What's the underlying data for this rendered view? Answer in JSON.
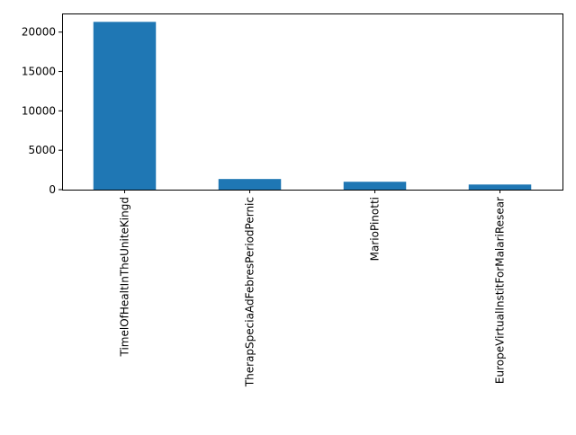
{
  "chart_data": {
    "type": "bar",
    "categories": [
      "TimelOfHealtInTheUniteKingd",
      "TherapSpeciaAdFebresPeriodPernic",
      "MarioPinotti",
      "EuropeVirtualInstitForMalariResear"
    ],
    "values": [
      21300,
      1350,
      1000,
      650
    ],
    "ylim": [
      0,
      22365
    ],
    "yticks": [
      0,
      5000,
      10000,
      15000,
      20000
    ],
    "ytick_labels": [
      "0",
      "5000",
      "10000",
      "15000",
      "20000"
    ],
    "bar_color": "#1f77b4",
    "grid": false,
    "legend": "none",
    "title": "",
    "xlabel": "",
    "ylabel": ""
  }
}
